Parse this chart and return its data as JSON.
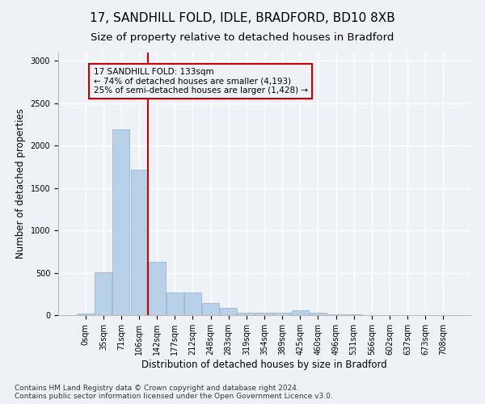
{
  "title": "17, SANDHILL FOLD, IDLE, BRADFORD, BD10 8XB",
  "subtitle": "Size of property relative to detached houses in Bradford",
  "xlabel": "Distribution of detached houses by size in Bradford",
  "ylabel": "Number of detached properties",
  "categories": [
    "0sqm",
    "35sqm",
    "71sqm",
    "106sqm",
    "142sqm",
    "177sqm",
    "212sqm",
    "248sqm",
    "283sqm",
    "319sqm",
    "354sqm",
    "389sqm",
    "425sqm",
    "460sqm",
    "496sqm",
    "531sqm",
    "566sqm",
    "602sqm",
    "637sqm",
    "673sqm",
    "708sqm"
  ],
  "values": [
    20,
    510,
    2190,
    1720,
    630,
    270,
    270,
    140,
    85,
    25,
    25,
    25,
    55,
    25,
    10,
    5,
    2,
    2,
    2,
    2,
    2
  ],
  "bar_color": "#b8d0e8",
  "bar_edge_color": "#8ab0d0",
  "vline_x_index": 4,
  "vline_color": "#cc0000",
  "annotation_text": "17 SANDHILL FOLD: 133sqm\n← 74% of detached houses are smaller (4,193)\n25% of semi-detached houses are larger (1,428) →",
  "ylim": [
    0,
    3100
  ],
  "yticks": [
    0,
    500,
    1000,
    1500,
    2000,
    2500,
    3000
  ],
  "footnote": "Contains HM Land Registry data © Crown copyright and database right 2024.\nContains public sector information licensed under the Open Government Licence v3.0.",
  "bg_color": "#eef2f7",
  "grid_color": "#ffffff",
  "title_fontsize": 11,
  "label_fontsize": 8.5,
  "tick_fontsize": 7,
  "footnote_fontsize": 6.5
}
